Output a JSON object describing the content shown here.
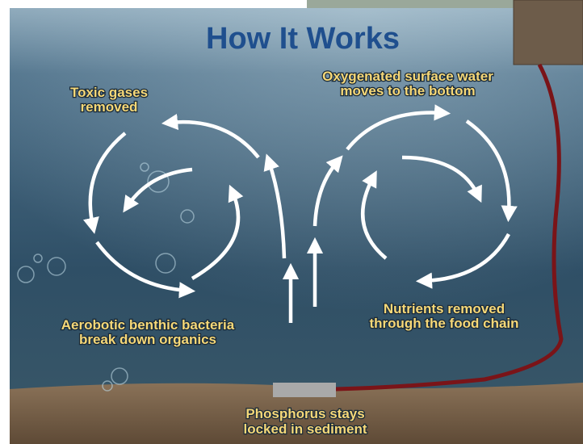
{
  "title": "How It Works",
  "labels": [
    {
      "lines": [
        "Toxic gases",
        "removed"
      ]
    },
    {
      "lines": [
        "Oxygenated surface water",
        "moves to the bottom"
      ]
    },
    {
      "lines": [
        "Aerobotic benthic bacteria",
        "break down organics"
      ]
    },
    {
      "lines": [
        "Nutrients removed",
        "through the food chain"
      ]
    },
    {
      "lines": [
        "Phosphorus stays",
        "locked in sediment"
      ]
    }
  ]
}
